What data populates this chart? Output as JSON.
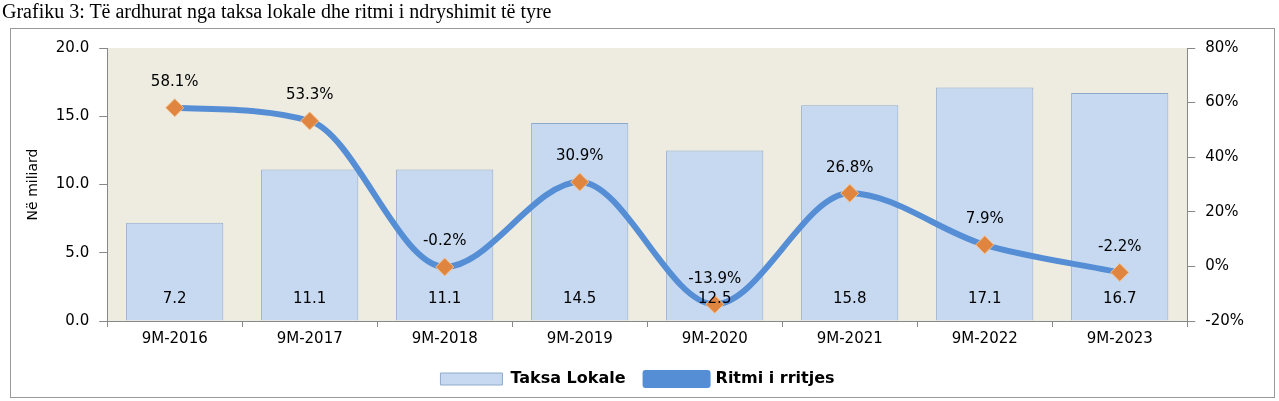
{
  "chart_data": {
    "type": "bar",
    "title": "Grafiku 3: Të ardhurat nga taksa lokale dhe ritmi i ndryshimit të tyre",
    "ylabel": "Në miliard",
    "categories": [
      "9M-2016",
      "9M-2017",
      "9M-2018",
      "9M-2019",
      "9M-2020",
      "9M-2021",
      "9M-2022",
      "9M-2023"
    ],
    "series": [
      {
        "name": "Taksa Lokale",
        "color": "#c6d9f1",
        "values": [
          7.2,
          11.1,
          11.1,
          14.5,
          12.5,
          15.8,
          17.1,
          16.7
        ],
        "value_labels": [
          "7.2",
          "11.1",
          "11.1",
          "14.5",
          "12.5",
          "15.8",
          "17.1",
          "16.7"
        ]
      },
      {
        "name": "Ritmi i rritjes",
        "type": "line",
        "axis": "y2",
        "color": "#558ed5",
        "marker": "diamond",
        "values": [
          58.1,
          53.3,
          -0.2,
          30.9,
          -13.9,
          26.8,
          7.9,
          -2.2
        ],
        "value_labels": [
          "58.1%",
          "53.3%",
          "-0.2%",
          "30.9%",
          "-13.9%",
          "26.8%",
          "7.9%",
          "-2.2%"
        ]
      }
    ],
    "ylim": [
      0,
      20
    ],
    "yticks": [
      {
        "value": 0,
        "label": "0.0"
      },
      {
        "value": 5,
        "label": "5.0"
      },
      {
        "value": 10,
        "label": "10.0"
      },
      {
        "value": 15,
        "label": "15.0"
      },
      {
        "value": 20,
        "label": "20.0"
      }
    ],
    "y2lim": [
      -20,
      80
    ],
    "y2ticks": [
      {
        "value": -20,
        "label": "-20%"
      },
      {
        "value": 0,
        "label": "0%"
      },
      {
        "value": 20,
        "label": "20%"
      },
      {
        "value": 40,
        "label": "40%"
      },
      {
        "value": 60,
        "label": "60%"
      },
      {
        "value": 80,
        "label": "80%"
      }
    ],
    "grid": false,
    "legend": "bottom"
  }
}
